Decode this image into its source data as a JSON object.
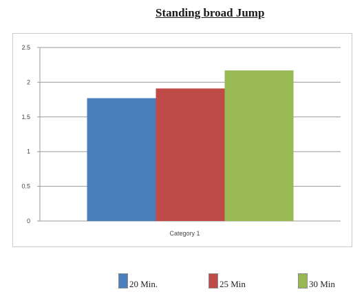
{
  "chart_data": {
    "type": "bar",
    "title": "Standing broad Jump",
    "categories": [
      "Category 1"
    ],
    "series": [
      {
        "name": "20 Min.",
        "values": [
          1.77
        ],
        "color": "#4a7ebb"
      },
      {
        "name": "25 Min",
        "values": [
          1.91
        ],
        "color": "#be4b48"
      },
      {
        "name": "30 Min",
        "values": [
          2.17
        ],
        "color": "#98b954"
      }
    ],
    "y_ticks": [
      "0",
      "0.5",
      "1",
      "1.5",
      "2",
      "2.5"
    ],
    "ylim": [
      0,
      2.5
    ],
    "xlabel": "",
    "ylabel": "",
    "grid": true,
    "legend_position": "bottom"
  }
}
